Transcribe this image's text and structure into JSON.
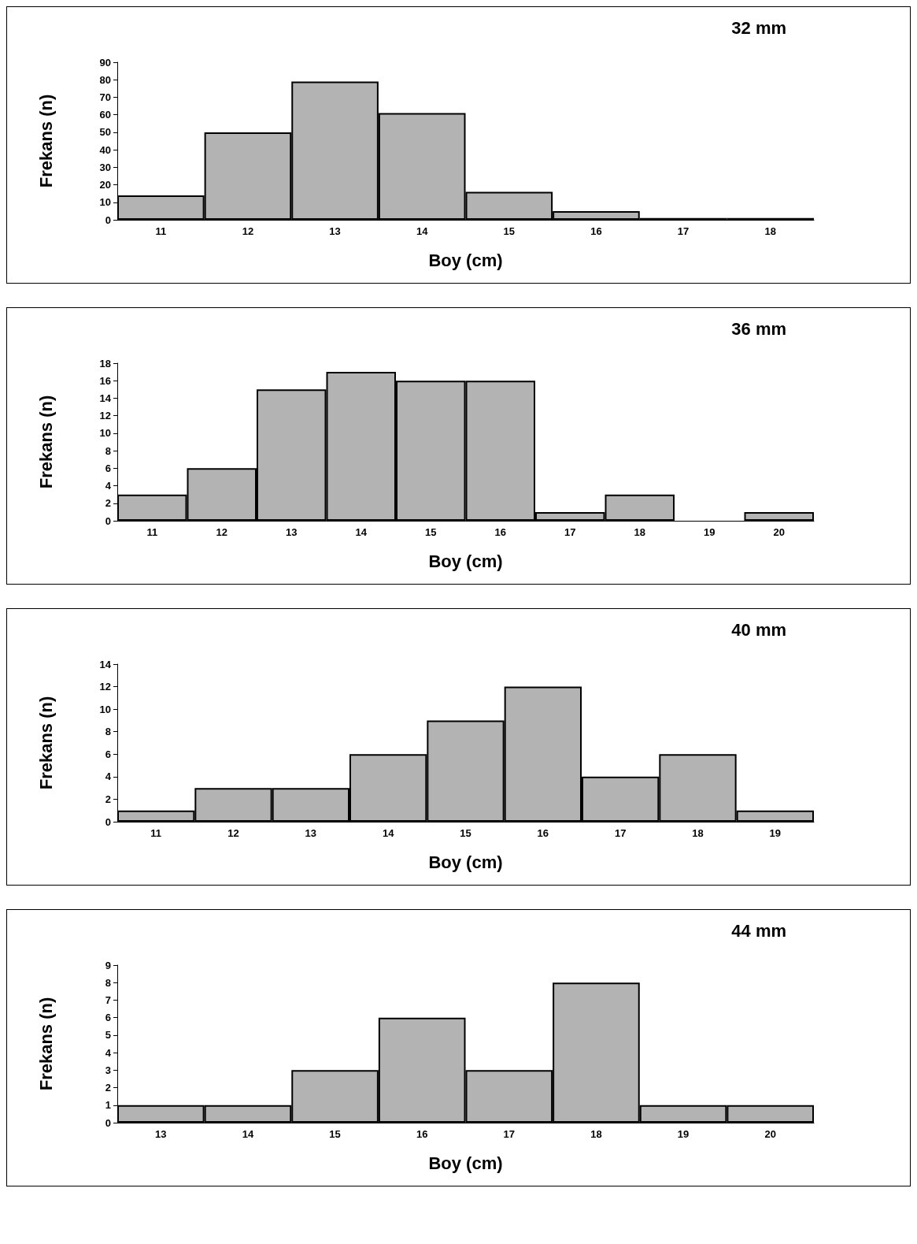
{
  "chart_data": [
    {
      "type": "bar",
      "title": "32 mm",
      "xlabel": "Boy (cm)",
      "ylabel": "Frekans (n)",
      "categories": [
        "11",
        "12",
        "13",
        "14",
        "15",
        "16",
        "17",
        "18"
      ],
      "values": [
        14,
        50,
        79,
        61,
        16,
        5,
        1,
        1
      ],
      "color": "#b3b3b3",
      "ylim": [
        0,
        90
      ],
      "yticks": [
        0,
        10,
        20,
        30,
        40,
        50,
        60,
        70,
        80,
        90
      ]
    },
    {
      "type": "bar",
      "title": "36 mm",
      "xlabel": "Boy (cm)",
      "ylabel": "Frekans (n)",
      "categories": [
        "11",
        "12",
        "13",
        "14",
        "15",
        "16",
        "17",
        "18",
        "19",
        "20"
      ],
      "values": [
        3,
        6,
        15,
        17,
        16,
        16,
        1,
        3,
        0,
        1
      ],
      "color": "#b3b3b3",
      "ylim": [
        0,
        18
      ],
      "yticks": [
        0,
        2,
        4,
        6,
        8,
        10,
        12,
        14,
        16,
        18
      ]
    },
    {
      "type": "bar",
      "title": "40 mm",
      "xlabel": "Boy (cm)",
      "ylabel": "Frekans (n)",
      "categories": [
        "11",
        "12",
        "13",
        "14",
        "15",
        "16",
        "17",
        "18",
        "19"
      ],
      "values": [
        1,
        3,
        3,
        6,
        9,
        12,
        4,
        6,
        1
      ],
      "color": "#b3b3b3",
      "ylim": [
        0,
        14
      ],
      "yticks": [
        0,
        2,
        4,
        6,
        8,
        10,
        12,
        14
      ]
    },
    {
      "type": "bar",
      "title": "44 mm",
      "xlabel": "Boy (cm)",
      "ylabel": "Frekans (n)",
      "categories": [
        "13",
        "14",
        "15",
        "16",
        "17",
        "18",
        "19",
        "20"
      ],
      "values": [
        1,
        1,
        3,
        6,
        3,
        8,
        1,
        1
      ],
      "color": "#b3b3b3",
      "ylim": [
        0,
        9
      ],
      "yticks": [
        0,
        1,
        2,
        3,
        4,
        5,
        6,
        7,
        8,
        9
      ]
    }
  ]
}
